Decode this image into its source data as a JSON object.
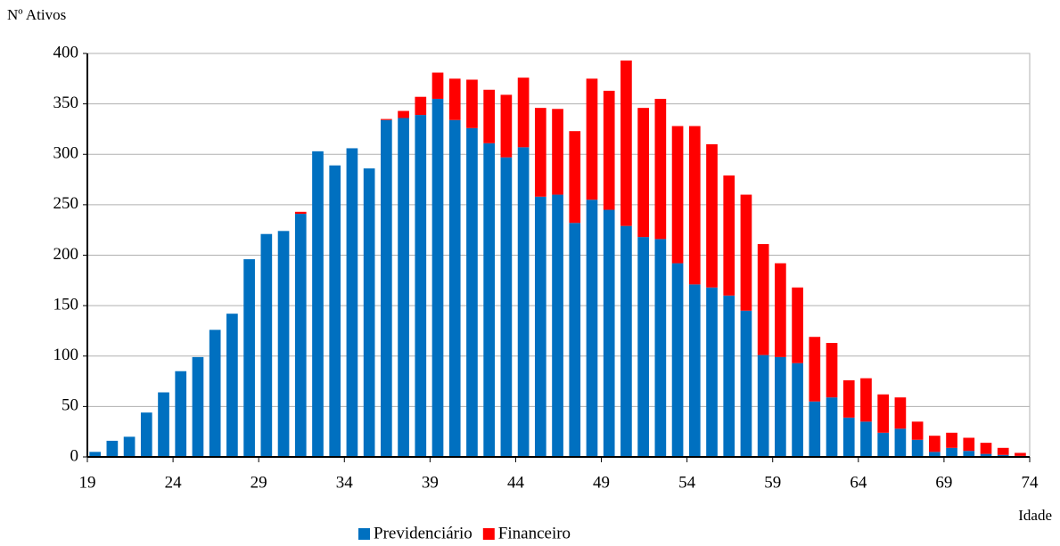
{
  "chart_data": {
    "type": "stacked_bar",
    "y_label": "Nº Ativos",
    "x_label": "Idade",
    "categories": [
      "19",
      null,
      null,
      null,
      null,
      "24",
      null,
      null,
      null,
      null,
      "29",
      null,
      null,
      null,
      null,
      "34",
      null,
      null,
      null,
      null,
      "39",
      null,
      null,
      null,
      null,
      "44",
      null,
      null,
      null,
      null,
      "49",
      null,
      null,
      null,
      null,
      "54",
      null,
      null,
      null,
      null,
      "59",
      null,
      null,
      null,
      null,
      "64",
      null,
      null,
      null,
      null,
      "69",
      null,
      null,
      null,
      null,
      "74"
    ],
    "series": [
      {
        "name": "Previdenciário",
        "color": "#0070c0",
        "values": [
          5,
          16,
          20,
          44,
          64,
          85,
          99,
          126,
          142,
          196,
          221,
          224,
          241,
          303,
          289,
          306,
          286,
          334,
          336,
          339,
          355,
          334,
          326,
          311,
          297,
          307,
          258,
          260,
          232,
          255,
          245,
          229,
          218,
          216,
          192,
          171,
          168,
          160,
          145,
          101,
          99,
          93,
          55,
          59,
          39,
          35,
          24,
          28,
          17,
          5,
          9,
          6,
          3,
          2,
          1,
          0
        ]
      },
      {
        "name": "Financeiro",
        "color": "#ff0000",
        "values": [
          0,
          0,
          0,
          0,
          0,
          0,
          0,
          0,
          0,
          0,
          0,
          0,
          2,
          0,
          0,
          0,
          0,
          1,
          7,
          18,
          26,
          41,
          48,
          53,
          62,
          69,
          88,
          85,
          91,
          120,
          118,
          164,
          128,
          139,
          136,
          157,
          142,
          119,
          115,
          110,
          93,
          75,
          64,
          54,
          37,
          43,
          38,
          31,
          18,
          16,
          15,
          13,
          11,
          7,
          3,
          0
        ]
      }
    ],
    "ylim": [
      0,
      400
    ],
    "yticks": [
      0,
      50,
      100,
      150,
      200,
      250,
      300,
      350,
      400
    ],
    "grid": true
  }
}
